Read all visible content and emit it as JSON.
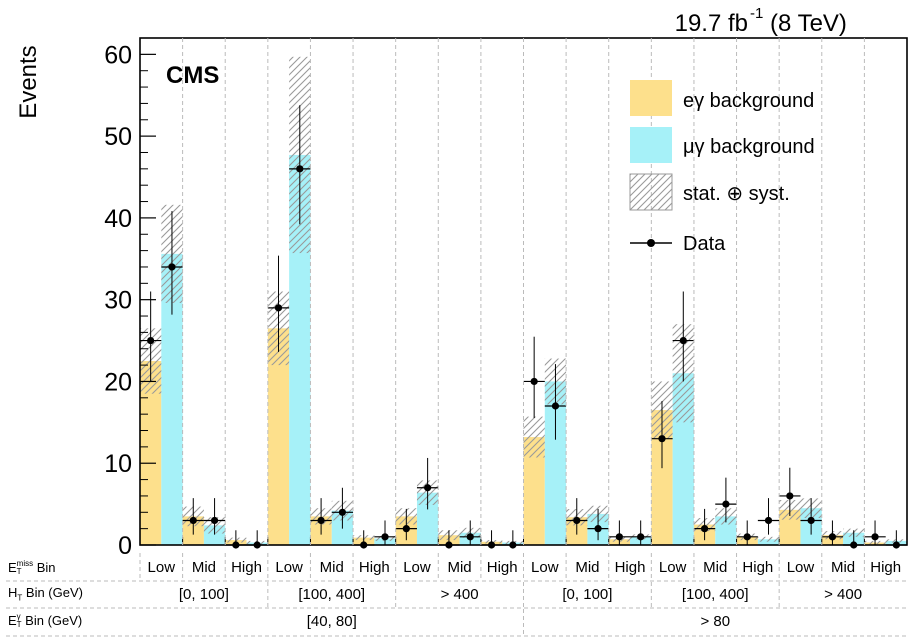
{
  "header": {
    "lumi": "19.7 fb",
    "lumi_exp": "-1",
    "energy": "(8 TeV)",
    "experiment": "CMS"
  },
  "axes": {
    "ylabel": "Events",
    "row_label_met_main": "E",
    "row_label_met_sup": "miss",
    "row_label_met_sub": "T",
    "row_label_met_tail": " Bin",
    "row_label_ht_main": "H",
    "row_label_ht_sub": "T",
    "row_label_ht_tail": " Bin (GeV)",
    "row_label_etg_main": "E",
    "row_label_etg_sup": "γ",
    "row_label_etg_sub": "T",
    "row_label_etg_tail": " Bin (GeV)"
  },
  "legend": {
    "egamma": "eγ background",
    "mugamma": "μγ background",
    "unc": "stat. ⊕ syst.",
    "data": "Data"
  },
  "colors": {
    "egamma": "#fde08c",
    "mugamma": "#a6f1f8",
    "hatch": "#9a9a9a",
    "data": "#000000"
  },
  "chart_data": {
    "type": "bar",
    "ylim": [
      0,
      62
    ],
    "yticks": [
      0,
      10,
      20,
      30,
      40,
      50,
      60
    ],
    "grid": false,
    "legend_position": "top-right",
    "met_bins": [
      "Low",
      "Mid",
      "High",
      "Low",
      "Mid",
      "High",
      "Low",
      "Mid",
      "High",
      "Low",
      "Mid",
      "High",
      "Low",
      "Mid",
      "High",
      "Low",
      "Mid",
      "High"
    ],
    "ht_bins": [
      "[0, 100]",
      "[100, 400]",
      "> 400",
      "[0, 100]",
      "[100, 400]",
      "> 400"
    ],
    "etg_bins": [
      "[40, 80]",
      "> 80"
    ],
    "series": [
      {
        "name": "eγ background",
        "values": [
          22.5,
          3.5,
          0.6,
          26.5,
          3.5,
          0.9,
          3.5,
          1.2,
          0.4,
          13.2,
          3.4,
          0.7,
          16.5,
          2.5,
          1.0,
          4.3,
          1.2,
          0.3
        ],
        "unc": [
          4.0,
          1.2,
          0.3,
          4.5,
          1.0,
          0.3,
          1.0,
          0.6,
          0.2,
          2.5,
          1.0,
          0.3,
          3.5,
          0.8,
          0.4,
          1.2,
          0.5,
          0.2
        ]
      },
      {
        "name": "μγ background",
        "values": [
          35.6,
          2.4,
          0.3,
          47.7,
          4.2,
          0.8,
          6.4,
          1.5,
          0.3,
          20.0,
          3.8,
          1.0,
          21.0,
          3.5,
          0.7,
          4.5,
          1.5,
          0.5
        ],
        "unc": [
          6.0,
          1.0,
          0.2,
          12.0,
          1.2,
          0.3,
          1.5,
          0.6,
          0.2,
          2.8,
          1.0,
          0.3,
          6.0,
          1.0,
          0.3,
          1.2,
          0.5,
          0.2
        ]
      }
    ],
    "data": {
      "name": "Data",
      "eg": [
        25,
        3,
        0,
        29,
        3,
        0,
        2,
        0,
        0,
        20,
        3,
        1,
        13,
        2,
        1,
        6,
        1,
        1
      ],
      "mg": [
        34,
        3,
        0,
        46,
        4,
        1,
        7,
        1,
        0,
        17,
        2,
        1,
        25,
        5,
        3,
        3,
        0,
        0
      ]
    }
  }
}
